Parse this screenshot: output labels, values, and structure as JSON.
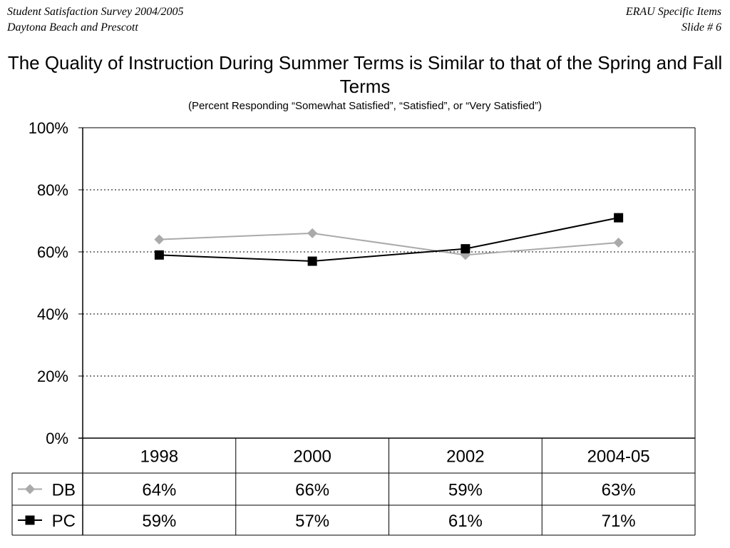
{
  "header": {
    "left_line1": "Student Satisfaction Survey 2004/2005",
    "left_line2": "Daytona Beach and Prescott",
    "right_line1": "ERAU Specific Items",
    "right_line2": "Slide # 6"
  },
  "chart_data": {
    "type": "line",
    "title": "The Quality of Instruction During Summer Terms is Similar to that of the Spring and Fall Terms",
    "subtitle": "(Percent Responding “Somewhat Satisfied”, “Satisfied”, or “Very Satisfied”)",
    "categories": [
      "1998",
      "2000",
      "2002",
      "2004-05"
    ],
    "y_ticks": [
      "0%",
      "20%",
      "40%",
      "60%",
      "80%",
      "100%"
    ],
    "ylim": [
      0,
      100
    ],
    "grid": "horizontal dotted",
    "legend": "data table below chart",
    "series": [
      {
        "name": "DB",
        "values": [
          64,
          66,
          59,
          63
        ],
        "labels": [
          "64%",
          "66%",
          "59%",
          "63%"
        ],
        "color": "#aaaaaa",
        "marker": "diamond"
      },
      {
        "name": "PC",
        "values": [
          59,
          57,
          61,
          71
        ],
        "labels": [
          "59%",
          "57%",
          "61%",
          "71%"
        ],
        "color": "#000000",
        "marker": "square"
      }
    ]
  }
}
